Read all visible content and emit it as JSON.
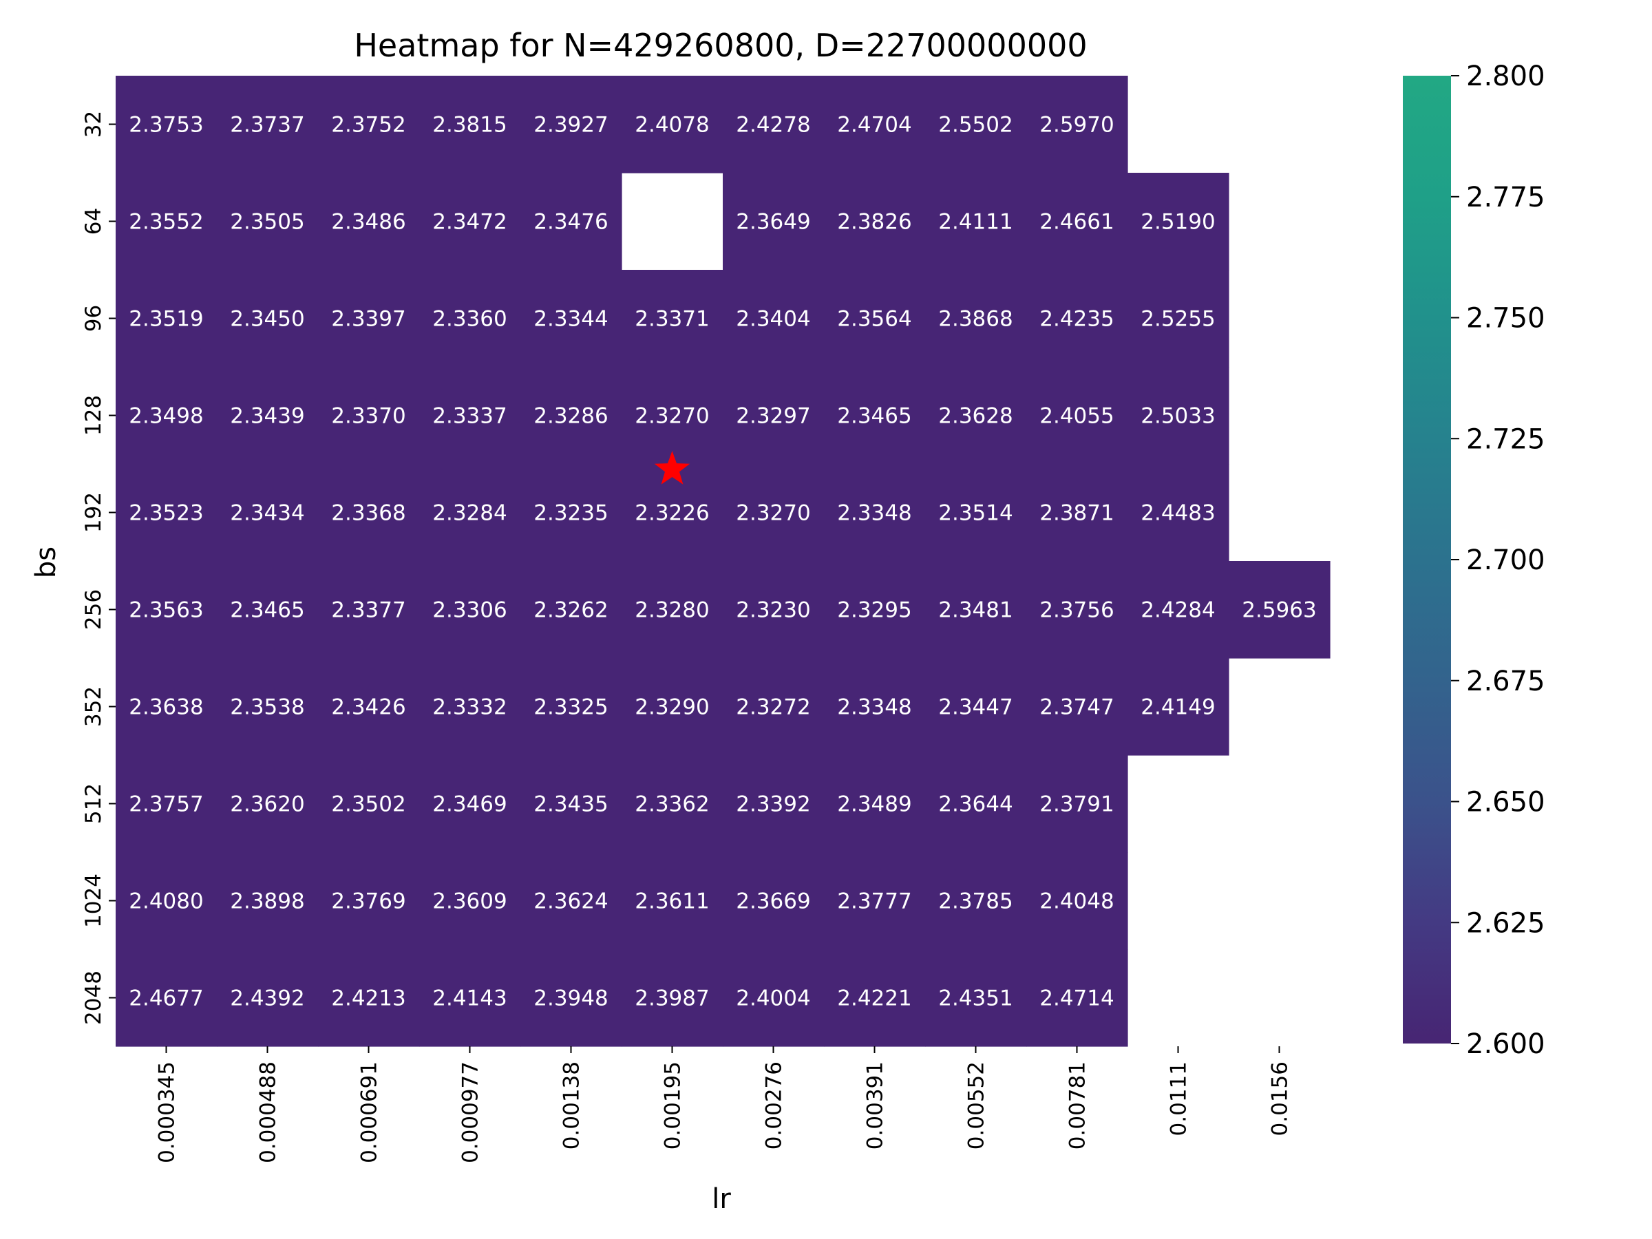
{
  "chart_data": {
    "type": "heatmap",
    "title": "Heatmap for N=429260800, D=22700000000",
    "xlabel": "lr",
    "ylabel": "bs",
    "x_categories": [
      "0.000345",
      "0.000488",
      "0.000691",
      "0.000977",
      "0.00138",
      "0.00195",
      "0.00276",
      "0.00391",
      "0.00552",
      "0.00781",
      "0.0111",
      "0.0156"
    ],
    "y_categories": [
      "32",
      "64",
      "96",
      "128",
      "192",
      "256",
      "352",
      "512",
      "1024",
      "2048"
    ],
    "values": [
      [
        "2.3753",
        "2.3737",
        "2.3752",
        "2.3815",
        "2.3927",
        "2.4078",
        "2.4278",
        "2.4704",
        "2.5502",
        "2.5970",
        null,
        null
      ],
      [
        "2.3552",
        "2.3505",
        "2.3486",
        "2.3472",
        "2.3476",
        null,
        "2.3649",
        "2.3826",
        "2.4111",
        "2.4661",
        "2.5190",
        null
      ],
      [
        "2.3519",
        "2.3450",
        "2.3397",
        "2.3360",
        "2.3344",
        "2.3371",
        "2.3404",
        "2.3564",
        "2.3868",
        "2.4235",
        "2.5255",
        null
      ],
      [
        "2.3498",
        "2.3439",
        "2.3370",
        "2.3337",
        "2.3286",
        "2.3270",
        "2.3297",
        "2.3465",
        "2.3628",
        "2.4055",
        "2.5033",
        null
      ],
      [
        "2.3523",
        "2.3434",
        "2.3368",
        "2.3284",
        "2.3235",
        "2.3226",
        "2.3270",
        "2.3348",
        "2.3514",
        "2.3871",
        "2.4483",
        null
      ],
      [
        "2.3563",
        "2.3465",
        "2.3377",
        "2.3306",
        "2.3262",
        "2.3280",
        "2.3230",
        "2.3295",
        "2.3481",
        "2.3756",
        "2.4284",
        "2.5963"
      ],
      [
        "2.3638",
        "2.3538",
        "2.3426",
        "2.3332",
        "2.3325",
        "2.3290",
        "2.3272",
        "2.3348",
        "2.3447",
        "2.3747",
        "2.4149",
        null
      ],
      [
        "2.3757",
        "2.3620",
        "2.3502",
        "2.3469",
        "2.3435",
        "2.3362",
        "2.3392",
        "2.3489",
        "2.3644",
        "2.3791",
        null,
        null
      ],
      [
        "2.4080",
        "2.3898",
        "2.3769",
        "2.3609",
        "2.3624",
        "2.3611",
        "2.3669",
        "2.3777",
        "2.3785",
        "2.4048",
        null,
        null
      ],
      [
        "2.4677",
        "2.4392",
        "2.4213",
        "2.4143",
        "2.3948",
        "2.3987",
        "2.4004",
        "2.4221",
        "2.4351",
        "2.4714",
        null,
        null
      ]
    ],
    "best_marker": {
      "row": 4,
      "col": 5,
      "symbol": "star",
      "color": "#ff0000"
    },
    "colorbar": {
      "min": 2.6,
      "max": 2.8,
      "colormap": "viridis",
      "ticks": [
        "2.600",
        "2.625",
        "2.650",
        "2.675",
        "2.700",
        "2.725",
        "2.750",
        "2.775",
        "2.800"
      ]
    },
    "cell_color": "#472575"
  }
}
